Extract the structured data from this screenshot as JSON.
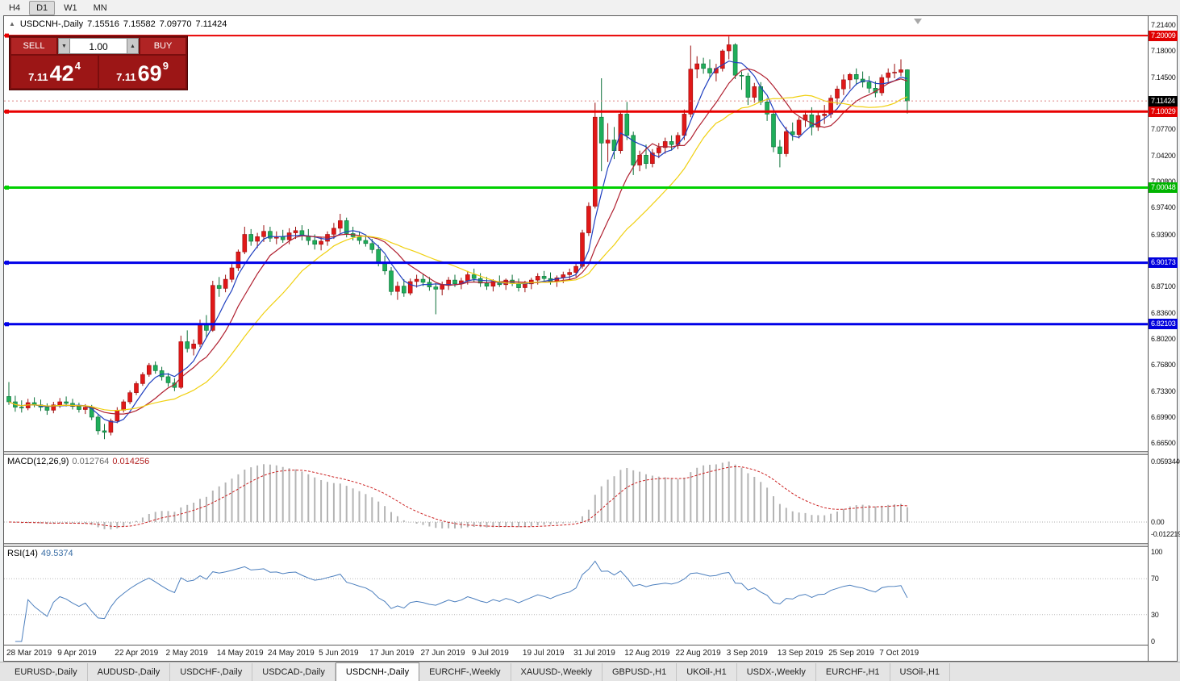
{
  "window": {
    "toolbar": {
      "buttons": [
        "H4",
        "D1",
        "W1",
        "MN"
      ],
      "active": "D1"
    }
  },
  "chart": {
    "collapse_arrow": "▲",
    "title_symbol": "USDCNH-,Daily",
    "ohlc": {
      "o": "7.15516",
      "h": "7.15582",
      "l": "7.09770",
      "c": "7.11424"
    }
  },
  "one_click": {
    "sell_label": "SELL",
    "buy_label": "BUY",
    "volume": "1.00",
    "vol_down_icon": "▼",
    "vol_up_icon": "▲",
    "bid": {
      "small": "7.11",
      "large": "42",
      "sup": "4"
    },
    "ask": {
      "small": "7.11",
      "large": "69",
      "sup": "9"
    }
  },
  "price_axis": {
    "labels": [
      {
        "text": "7.21400",
        "value": 7.214
      },
      {
        "text": "7.18000",
        "value": 7.18
      },
      {
        "text": "7.14500",
        "value": 7.145
      },
      {
        "text": "7.07700",
        "value": 7.077
      },
      {
        "text": "7.04200",
        "value": 7.042
      },
      {
        "text": "7.00800",
        "value": 7.008
      },
      {
        "text": "6.97400",
        "value": 6.974
      },
      {
        "text": "6.93900",
        "value": 6.939
      },
      {
        "text": "6.87100",
        "value": 6.871
      },
      {
        "text": "6.83600",
        "value": 6.836
      },
      {
        "text": "6.80200",
        "value": 6.802
      },
      {
        "text": "6.76800",
        "value": 6.768
      },
      {
        "text": "6.73300",
        "value": 6.733
      },
      {
        "text": "6.69900",
        "value": 6.699
      },
      {
        "text": "6.66500",
        "value": 6.665
      }
    ],
    "badges": [
      {
        "text": "7.20009",
        "value": 7.20009,
        "bg": "#e00000"
      },
      {
        "text": "7.11424",
        "value": 7.11424,
        "bg": "#000000"
      },
      {
        "text": "7.10029",
        "value": 7.10029,
        "bg": "#e00000"
      },
      {
        "text": "7.00048",
        "value": 7.00048,
        "bg": "#00b400"
      },
      {
        "text": "6.90173",
        "value": 6.90173,
        "bg": "#0000dd"
      },
      {
        "text": "6.82103",
        "value": 6.82103,
        "bg": "#0000dd"
      }
    ]
  },
  "macd": {
    "label": "MACD(12,26,9)",
    "value_main": "0.012764",
    "value_signal": "0.014256",
    "params": [
      12,
      26,
      9
    ],
    "axis": [
      {
        "text": "0.0593440",
        "value": 0.059344
      },
      {
        "text": "0.00",
        "value": 0
      },
      {
        "text": "-0.0122190",
        "value": -0.012219
      }
    ]
  },
  "rsi": {
    "label": "RSI(14)",
    "value": "49.5374",
    "period": 14,
    "levels": [
      70,
      30
    ],
    "axis": [
      {
        "text": "100",
        "value": 100
      },
      {
        "text": "70",
        "value": 70
      },
      {
        "text": "30",
        "value": 30
      },
      {
        "text": "0",
        "value": 0
      }
    ]
  },
  "tabs": {
    "items": [
      "EURUSD-,Daily",
      "AUDUSD-,Daily",
      "USDCHF-,Daily",
      "USDCAD-,Daily",
      "USDCNH-,Daily",
      "EURCHF-,Weekly",
      "XAUUSD-,Weekly",
      "GBPUSD-,H1",
      "UKOil-,H1",
      "USDX-,Weekly",
      "EURCHF-,H1",
      "USOil-,H1"
    ],
    "active_index": 4
  },
  "chart_data": {
    "type": "candlestick",
    "symbol": "USDCNH",
    "timeframe": "Daily",
    "ylim": [
      6.665,
      7.214
    ],
    "current_price": 7.11424,
    "colors": {
      "up": "#e01818",
      "up_dark": "#9b0f0f",
      "down": "#1fae5a",
      "down_dark": "#0c7038"
    },
    "moving_averages": [
      {
        "period": 5,
        "color": "#2040c0"
      },
      {
        "period": 10,
        "color": "#b02030"
      },
      {
        "period": 20,
        "color": "#f0d010"
      }
    ],
    "hlines": [
      {
        "price": 7.20009,
        "color": "#e80000",
        "width": 2
      },
      {
        "price": 7.10029,
        "color": "#e80000",
        "width": 3
      },
      {
        "price": 7.00048,
        "color": "#00d000",
        "width": 3
      },
      {
        "price": 6.90173,
        "color": "#0000e8",
        "width": 3
      },
      {
        "price": 6.82103,
        "color": "#0000e8",
        "width": 3
      }
    ],
    "x_labels": [
      {
        "i": 0,
        "label": "28 Mar 2019"
      },
      {
        "i": 8,
        "label": "9 Apr 2019"
      },
      {
        "i": 17,
        "label": "22 Apr 2019"
      },
      {
        "i": 25,
        "label": "2 May 2019"
      },
      {
        "i": 33,
        "label": "14 May 2019"
      },
      {
        "i": 41,
        "label": "24 May 2019"
      },
      {
        "i": 49,
        "label": "5 Jun 2019"
      },
      {
        "i": 57,
        "label": "17 Jun 2019"
      },
      {
        "i": 65,
        "label": "27 Jun 2019"
      },
      {
        "i": 73,
        "label": "9 Jul 2019"
      },
      {
        "i": 81,
        "label": "19 Jul 2019"
      },
      {
        "i": 89,
        "label": "31 Jul 2019"
      },
      {
        "i": 97,
        "label": "12 Aug 2019"
      },
      {
        "i": 105,
        "label": "22 Aug 2019"
      },
      {
        "i": 113,
        "label": "3 Sep 2019"
      },
      {
        "i": 121,
        "label": "13 Sep 2019"
      },
      {
        "i": 129,
        "label": "25 Sep 2019"
      },
      {
        "i": 137,
        "label": "7 Oct 2019"
      }
    ],
    "candles": [
      [
        6.726,
        6.745,
        6.715,
        6.719
      ],
      [
        6.719,
        6.727,
        6.706,
        6.712
      ],
      [
        6.712,
        6.721,
        6.705,
        6.711
      ],
      [
        6.711,
        6.723,
        6.708,
        6.718
      ],
      [
        6.718,
        6.725,
        6.712,
        6.715
      ],
      [
        6.715,
        6.722,
        6.707,
        6.712
      ],
      [
        6.712,
        6.717,
        6.702,
        6.708
      ],
      [
        6.708,
        6.719,
        6.704,
        6.715
      ],
      [
        6.715,
        6.724,
        6.711,
        6.719
      ],
      [
        6.719,
        6.726,
        6.713,
        6.717
      ],
      [
        6.717,
        6.723,
        6.709,
        6.713
      ],
      [
        6.713,
        6.718,
        6.705,
        6.709
      ],
      [
        6.709,
        6.716,
        6.703,
        6.712
      ],
      [
        6.712,
        6.715,
        6.695,
        6.699
      ],
      [
        6.699,
        6.703,
        6.676,
        6.681
      ],
      [
        6.681,
        6.69,
        6.67,
        6.679
      ],
      [
        6.679,
        6.697,
        6.675,
        6.694
      ],
      [
        6.694,
        6.712,
        6.691,
        6.708
      ],
      [
        6.708,
        6.722,
        6.705,
        6.719
      ],
      [
        6.719,
        6.734,
        6.716,
        6.731
      ],
      [
        6.731,
        6.746,
        6.728,
        6.743
      ],
      [
        6.743,
        6.758,
        6.74,
        6.755
      ],
      [
        6.755,
        6.77,
        6.752,
        6.767
      ],
      [
        6.767,
        6.772,
        6.756,
        6.76
      ],
      [
        6.76,
        6.765,
        6.747,
        6.752
      ],
      [
        6.752,
        6.757,
        6.739,
        6.744
      ],
      [
        6.744,
        6.75,
        6.733,
        6.738
      ],
      [
        6.738,
        6.806,
        6.736,
        6.798
      ],
      [
        6.798,
        6.813,
        6.784,
        6.789
      ],
      [
        6.789,
        6.801,
        6.78,
        6.795
      ],
      [
        6.795,
        6.827,
        6.791,
        6.822
      ],
      [
        6.822,
        6.833,
        6.803,
        6.813
      ],
      [
        6.813,
        6.878,
        6.811,
        6.872
      ],
      [
        6.872,
        6.883,
        6.857,
        6.868
      ],
      [
        6.868,
        6.886,
        6.863,
        6.88
      ],
      [
        6.88,
        6.9,
        6.876,
        6.895
      ],
      [
        6.895,
        6.919,
        6.891,
        6.916
      ],
      [
        6.916,
        6.949,
        6.913,
        6.939
      ],
      [
        6.939,
        6.946,
        6.924,
        6.93
      ],
      [
        6.93,
        6.941,
        6.921,
        6.936
      ],
      [
        6.936,
        6.951,
        6.929,
        6.943
      ],
      [
        6.943,
        6.949,
        6.929,
        6.934
      ],
      [
        6.934,
        6.943,
        6.926,
        6.936
      ],
      [
        6.936,
        6.945,
        6.928,
        6.932
      ],
      [
        6.932,
        6.947,
        6.926,
        6.941
      ],
      [
        6.941,
        6.949,
        6.933,
        6.944
      ],
      [
        6.944,
        6.951,
        6.931,
        6.937
      ],
      [
        6.937,
        6.946,
        6.925,
        6.931
      ],
      [
        6.931,
        6.939,
        6.919,
        6.926
      ],
      [
        6.926,
        6.936,
        6.918,
        6.93
      ],
      [
        6.93,
        6.943,
        6.924,
        6.939
      ],
      [
        6.939,
        6.954,
        6.933,
        6.947
      ],
      [
        6.947,
        6.966,
        6.941,
        6.957
      ],
      [
        6.957,
        6.961,
        6.935,
        6.94
      ],
      [
        6.94,
        6.949,
        6.931,
        6.936
      ],
      [
        6.936,
        6.943,
        6.926,
        6.931
      ],
      [
        6.931,
        6.939,
        6.923,
        6.927
      ],
      [
        6.927,
        6.933,
        6.914,
        6.919
      ],
      [
        6.919,
        6.925,
        6.897,
        6.902
      ],
      [
        6.902,
        6.911,
        6.886,
        6.891
      ],
      [
        6.891,
        6.896,
        6.859,
        6.864
      ],
      [
        6.864,
        6.877,
        6.853,
        6.871
      ],
      [
        6.871,
        6.88,
        6.857,
        6.862
      ],
      [
        6.862,
        6.881,
        6.859,
        6.877
      ],
      [
        6.877,
        6.886,
        6.869,
        6.88
      ],
      [
        6.88,
        6.887,
        6.871,
        6.876
      ],
      [
        6.876,
        6.883,
        6.865,
        6.87
      ],
      [
        6.87,
        6.875,
        6.834,
        6.867
      ],
      [
        6.867,
        6.877,
        6.859,
        6.873
      ],
      [
        6.873,
        6.883,
        6.866,
        6.879
      ],
      [
        6.879,
        6.886,
        6.87,
        6.874
      ],
      [
        6.874,
        6.882,
        6.867,
        6.878
      ],
      [
        6.878,
        6.891,
        6.873,
        6.886
      ],
      [
        6.886,
        6.894,
        6.877,
        6.881
      ],
      [
        6.881,
        6.888,
        6.87,
        6.875
      ],
      [
        6.875,
        6.883,
        6.866,
        6.871
      ],
      [
        6.871,
        6.88,
        6.864,
        6.877
      ],
      [
        6.877,
        6.885,
        6.87,
        6.873
      ],
      [
        6.873,
        6.881,
        6.866,
        6.879
      ],
      [
        6.879,
        6.886,
        6.871,
        6.875
      ],
      [
        6.875,
        6.881,
        6.864,
        6.869
      ],
      [
        6.869,
        6.878,
        6.863,
        6.874
      ],
      [
        6.874,
        6.882,
        6.867,
        6.879
      ],
      [
        6.879,
        6.888,
        6.873,
        6.884
      ],
      [
        6.884,
        6.891,
        6.876,
        6.881
      ],
      [
        6.881,
        6.889,
        6.873,
        6.877
      ],
      [
        6.877,
        6.885,
        6.87,
        6.882
      ],
      [
        6.882,
        6.89,
        6.875,
        6.886
      ],
      [
        6.886,
        6.894,
        6.879,
        6.889
      ],
      [
        6.889,
        6.901,
        6.883,
        6.897
      ],
      [
        6.897,
        6.945,
        6.894,
        6.941
      ],
      [
        6.941,
        6.981,
        6.937,
        6.976
      ],
      [
        6.976,
        7.112,
        6.973,
        7.093
      ],
      [
        7.093,
        7.144,
        7.022,
        7.059
      ],
      [
        7.059,
        7.085,
        7.034,
        7.063
      ],
      [
        7.063,
        7.08,
        7.038,
        7.049
      ],
      [
        7.049,
        7.101,
        7.045,
        7.097
      ],
      [
        7.097,
        7.113,
        7.063,
        7.069
      ],
      [
        7.069,
        7.074,
        7.017,
        7.03
      ],
      [
        7.03,
        7.049,
        7.022,
        7.043
      ],
      [
        7.043,
        7.057,
        7.025,
        7.032
      ],
      [
        7.032,
        7.051,
        7.027,
        7.046
      ],
      [
        7.046,
        7.059,
        7.039,
        7.053
      ],
      [
        7.053,
        7.066,
        7.045,
        7.061
      ],
      [
        7.061,
        7.069,
        7.049,
        7.057
      ],
      [
        7.057,
        7.073,
        7.051,
        7.069
      ],
      [
        7.069,
        7.103,
        7.063,
        7.097
      ],
      [
        7.097,
        7.187,
        7.093,
        7.156
      ],
      [
        7.156,
        7.173,
        7.144,
        7.163
      ],
      [
        7.163,
        7.171,
        7.15,
        7.157
      ],
      [
        7.157,
        7.169,
        7.145,
        7.151
      ],
      [
        7.151,
        7.163,
        7.14,
        7.157
      ],
      [
        7.157,
        7.182,
        7.153,
        7.18
      ],
      [
        7.18,
        7.199,
        7.169,
        7.188
      ],
      [
        7.188,
        7.19,
        7.143,
        7.148
      ],
      [
        7.148,
        7.153,
        7.129,
        7.147
      ],
      [
        7.147,
        7.151,
        7.109,
        7.119
      ],
      [
        7.119,
        7.138,
        7.112,
        7.133
      ],
      [
        7.133,
        7.139,
        7.109,
        7.113
      ],
      [
        7.113,
        7.118,
        7.088,
        7.097
      ],
      [
        7.097,
        7.102,
        7.047,
        7.054
      ],
      [
        7.054,
        7.063,
        7.027,
        7.045
      ],
      [
        7.045,
        7.08,
        7.041,
        7.074
      ],
      [
        7.074,
        7.086,
        7.062,
        7.07
      ],
      [
        7.07,
        7.093,
        7.065,
        7.089
      ],
      [
        7.089,
        7.102,
        7.08,
        7.096
      ],
      [
        7.096,
        7.106,
        7.069,
        7.08
      ],
      [
        7.08,
        7.099,
        7.075,
        7.095
      ],
      [
        7.095,
        7.109,
        7.084,
        7.097
      ],
      [
        7.097,
        7.122,
        7.092,
        7.118
      ],
      [
        7.118,
        7.134,
        7.109,
        7.13
      ],
      [
        7.13,
        7.149,
        7.122,
        7.142
      ],
      [
        7.142,
        7.151,
        7.13,
        7.149
      ],
      [
        7.149,
        7.157,
        7.135,
        7.143
      ],
      [
        7.143,
        7.153,
        7.132,
        7.139
      ],
      [
        7.139,
        7.147,
        7.125,
        7.131
      ],
      [
        7.131,
        7.14,
        7.119,
        7.125
      ],
      [
        7.125,
        7.149,
        7.121,
        7.145
      ],
      [
        7.145,
        7.157,
        7.139,
        7.151
      ],
      [
        7.151,
        7.163,
        7.144,
        7.152
      ],
      [
        7.152,
        7.169,
        7.147,
        7.1552
      ],
      [
        7.15516,
        7.15582,
        7.0977,
        7.11424
      ]
    ]
  }
}
